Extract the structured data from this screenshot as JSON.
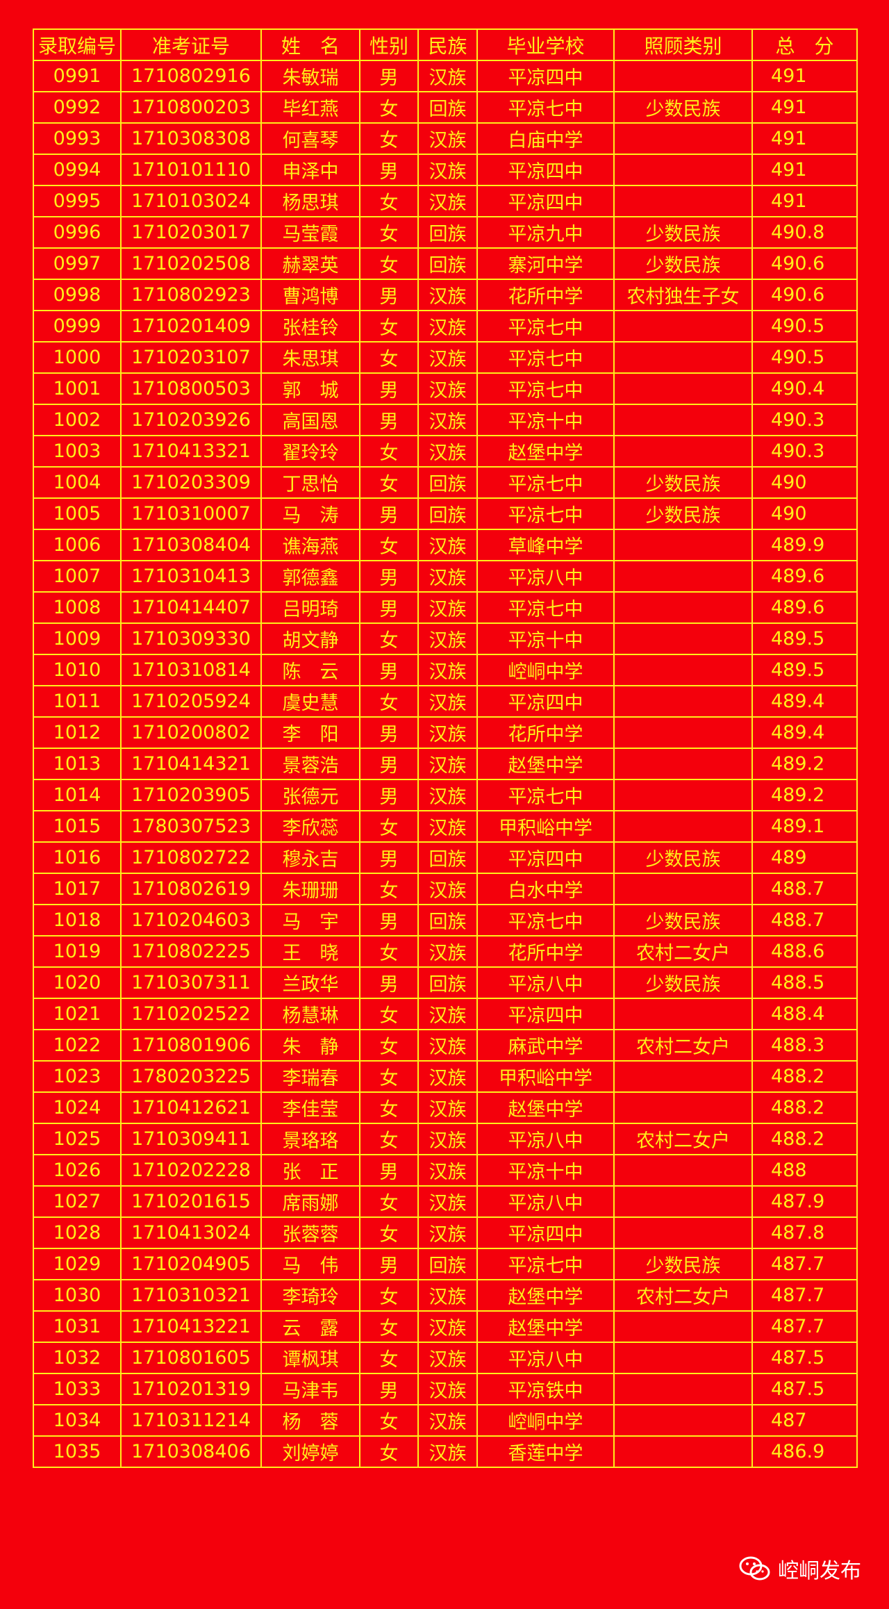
{
  "table": {
    "header": [
      "录取编号",
      "准考证号",
      "姓　名",
      "性别",
      "民族",
      "毕业学校",
      "照顾类别",
      "总　分"
    ],
    "rows": [
      [
        "0991",
        "1710802916",
        "朱敏瑞",
        "男",
        "汉族",
        "平凉四中",
        null,
        "491"
      ],
      [
        "0992",
        "1710800203",
        "毕红燕",
        "女",
        "回族",
        "平凉七中",
        "少数民族",
        "491"
      ],
      [
        "0993",
        "1710308308",
        "何喜琴",
        "女",
        "汉族",
        "白庙中学",
        null,
        "491"
      ],
      [
        "0994",
        "1710101110",
        "申泽中",
        "男",
        "汉族",
        "平凉四中",
        null,
        "491"
      ],
      [
        "0995",
        "1710103024",
        "杨思琪",
        "女",
        "汉族",
        "平凉四中",
        null,
        "491"
      ],
      [
        "0996",
        "1710203017",
        "马莹霞",
        "女",
        "回族",
        "平凉九中",
        "少数民族",
        "490.8"
      ],
      [
        "0997",
        "1710202508",
        "赫翠英",
        "女",
        "回族",
        "寨河中学",
        "少数民族",
        "490.6"
      ],
      [
        "0998",
        "1710802923",
        "曹鸿博",
        "男",
        "汉族",
        "花所中学",
        "农村独生子女",
        "490.6"
      ],
      [
        "0999",
        "1710201409",
        "张桂铃",
        "女",
        "汉族",
        "平凉七中",
        null,
        "490.5"
      ],
      [
        "1000",
        "1710203107",
        "朱思琪",
        "女",
        "汉族",
        "平凉七中",
        null,
        "490.5"
      ],
      [
        "1001",
        "1710800503",
        "郭　城",
        "男",
        "汉族",
        "平凉七中",
        null,
        "490.4"
      ],
      [
        "1002",
        "1710203926",
        "高国恩",
        "男",
        "汉族",
        "平凉十中",
        null,
        "490.3"
      ],
      [
        "1003",
        "1710413321",
        "翟玲玲",
        "女",
        "汉族",
        "赵堡中学",
        null,
        "490.3"
      ],
      [
        "1004",
        "1710203309",
        "丁思怡",
        "女",
        "回族",
        "平凉七中",
        "少数民族",
        "490"
      ],
      [
        "1005",
        "1710310007",
        "马　涛",
        "男",
        "回族",
        "平凉七中",
        "少数民族",
        "490"
      ],
      [
        "1006",
        "1710308404",
        "谯海燕",
        "女",
        "汉族",
        "草峰中学",
        null,
        "489.9"
      ],
      [
        "1007",
        "1710310413",
        "郭德鑫",
        "男",
        "汉族",
        "平凉八中",
        null,
        "489.6"
      ],
      [
        "1008",
        "1710414407",
        "吕明琦",
        "男",
        "汉族",
        "平凉七中",
        null,
        "489.6"
      ],
      [
        "1009",
        "1710309330",
        "胡文静",
        "女",
        "汉族",
        "平凉十中",
        null,
        "489.5"
      ],
      [
        "1010",
        "1710310814",
        "陈　云",
        "男",
        "汉族",
        "崆峒中学",
        null,
        "489.5"
      ],
      [
        "1011",
        "1710205924",
        "虞史慧",
        "女",
        "汉族",
        "平凉四中",
        null,
        "489.4"
      ],
      [
        "1012",
        "1710200802",
        "李　阳",
        "男",
        "汉族",
        "花所中学",
        null,
        "489.4"
      ],
      [
        "1013",
        "1710414321",
        "景蓉浩",
        "男",
        "汉族",
        "赵堡中学",
        null,
        "489.2"
      ],
      [
        "1014",
        "1710203905",
        "张德元",
        "男",
        "汉族",
        "平凉七中",
        null,
        "489.2"
      ],
      [
        "1015",
        "1780307523",
        "李欣蕊",
        "女",
        "汉族",
        "甲积峪中学",
        null,
        "489.1"
      ],
      [
        "1016",
        "1710802722",
        "穆永吉",
        "男",
        "回族",
        "平凉四中",
        "少数民族",
        "489"
      ],
      [
        "1017",
        "1710802619",
        "朱珊珊",
        "女",
        "汉族",
        "白水中学",
        null,
        "488.7"
      ],
      [
        "1018",
        "1710204603",
        "马　宇",
        "男",
        "回族",
        "平凉七中",
        "少数民族",
        "488.7"
      ],
      [
        "1019",
        "1710802225",
        "王　晓",
        "女",
        "汉族",
        "花所中学",
        "农村二女户",
        "488.6"
      ],
      [
        "1020",
        "1710307311",
        "兰政华",
        "男",
        "回族",
        "平凉八中",
        "少数民族",
        "488.5"
      ],
      [
        "1021",
        "1710202522",
        "杨慧琳",
        "女",
        "汉族",
        "平凉四中",
        null,
        "488.4"
      ],
      [
        "1022",
        "1710801906",
        "朱　静",
        "女",
        "汉族",
        "麻武中学",
        "农村二女户",
        "488.3"
      ],
      [
        "1023",
        "1780203225",
        "李瑞春",
        "女",
        "汉族",
        "甲积峪中学",
        null,
        "488.2"
      ],
      [
        "1024",
        "1710412621",
        "李佳莹",
        "女",
        "汉族",
        "赵堡中学",
        null,
        "488.2"
      ],
      [
        "1025",
        "1710309411",
        "景珞珞",
        "女",
        "汉族",
        "平凉八中",
        "农村二女户",
        "488.2"
      ],
      [
        "1026",
        "1710202228",
        "张　正",
        "男",
        "汉族",
        "平凉十中",
        null,
        "488"
      ],
      [
        "1027",
        "1710201615",
        "席雨娜",
        "女",
        "汉族",
        "平凉八中",
        null,
        "487.9"
      ],
      [
        "1028",
        "1710413024",
        "张蓉蓉",
        "女",
        "汉族",
        "平凉四中",
        null,
        "487.8"
      ],
      [
        "1029",
        "1710204905",
        "马　伟",
        "男",
        "回族",
        "平凉七中",
        "少数民族",
        "487.7"
      ],
      [
        "1030",
        "1710310321",
        "李琦玲",
        "女",
        "汉族",
        "赵堡中学",
        "农村二女户",
        "487.7"
      ],
      [
        "1031",
        "1710413221",
        "云　露",
        "女",
        "汉族",
        "赵堡中学",
        null,
        "487.7"
      ],
      [
        "1032",
        "1710801605",
        "谭枫琪",
        "女",
        "汉族",
        "平凉八中",
        null,
        "487.5"
      ],
      [
        "1033",
        "1710201319",
        "马津韦",
        "男",
        "汉族",
        "平凉铁中",
        null,
        "487.5"
      ],
      [
        "1034",
        "1710311214",
        "杨　蓉",
        "女",
        "汉族",
        "崆峒中学",
        null,
        "487"
      ],
      [
        "1035",
        "1710308406",
        "刘婷婷",
        "女",
        "汉族",
        "香莲中学",
        null,
        "486.9"
      ]
    ]
  },
  "footer": {
    "text": "崆峒发布"
  }
}
